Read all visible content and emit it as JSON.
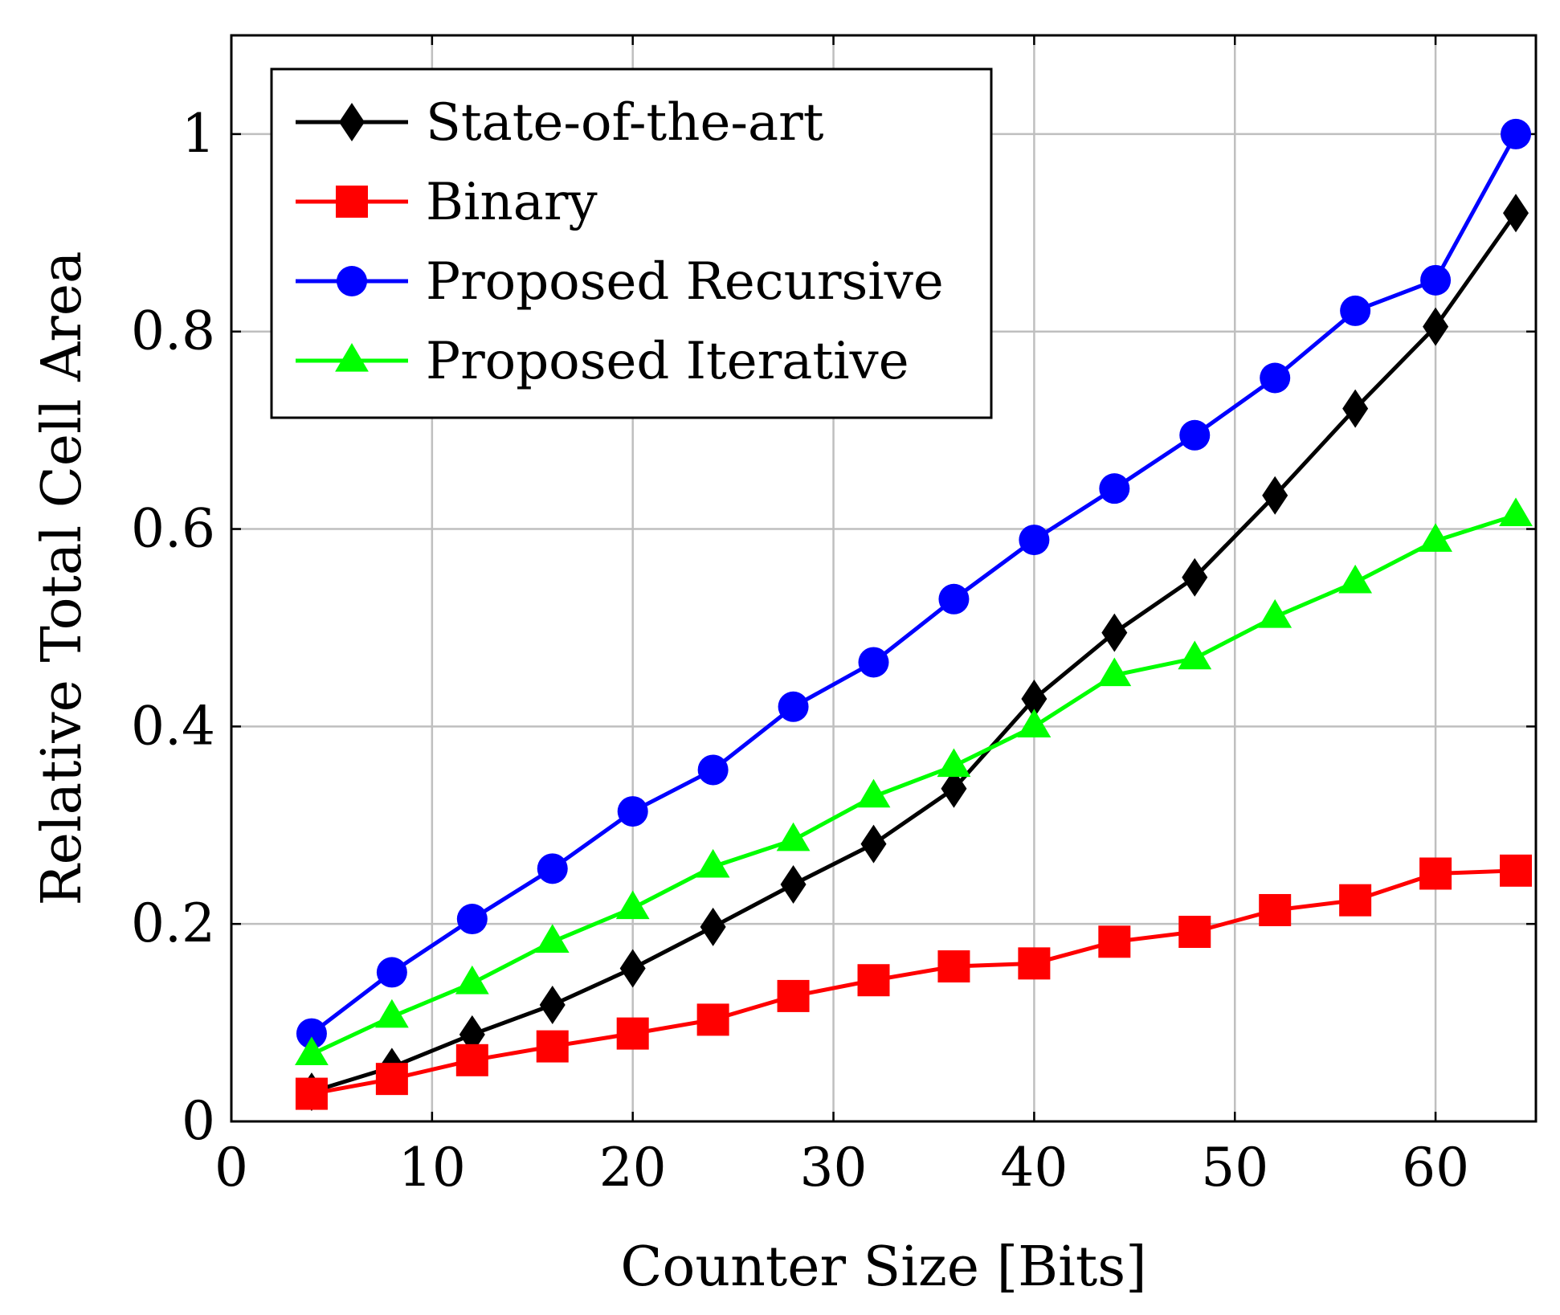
{
  "chart_data": {
    "type": "line",
    "title": "",
    "xlabel": "Counter Size [Bits]",
    "ylabel": "Relative Total Cell Area",
    "xlim": [
      0,
      65
    ],
    "ylim": [
      0,
      1.1
    ],
    "xticks": [
      0,
      10,
      20,
      30,
      40,
      50,
      60
    ],
    "xtick_labels": [
      "0",
      "10",
      "20",
      "30",
      "40",
      "50",
      "60"
    ],
    "yticks": [
      0,
      0.2,
      0.4,
      0.6,
      0.8,
      1
    ],
    "ytick_labels": [
      "0",
      "0.2",
      "0.4",
      "0.6",
      "0.8",
      "1"
    ],
    "grid": true,
    "legend_position": "top-left",
    "x": [
      4,
      8,
      12,
      16,
      20,
      24,
      28,
      32,
      36,
      40,
      44,
      48,
      52,
      56,
      60,
      64
    ],
    "series": [
      {
        "name": "State-of-the-art",
        "color": "#000000",
        "marker": "diamond",
        "values": [
          0.03,
          0.055,
          0.088,
          0.118,
          0.155,
          0.197,
          0.24,
          0.281,
          0.337,
          0.428,
          0.495,
          0.551,
          0.634,
          0.722,
          0.805,
          0.92
        ]
      },
      {
        "name": "Binary",
        "color": "#ff0000",
        "marker": "square",
        "values": [
          0.028,
          0.043,
          0.062,
          0.076,
          0.089,
          0.103,
          0.127,
          0.143,
          0.157,
          0.16,
          0.182,
          0.192,
          0.214,
          0.224,
          0.251,
          0.254
        ]
      },
      {
        "name": "Proposed Recursive",
        "color": "#0000ff",
        "marker": "circle",
        "values": [
          0.089,
          0.151,
          0.205,
          0.256,
          0.314,
          0.356,
          0.42,
          0.465,
          0.529,
          0.589,
          0.641,
          0.695,
          0.753,
          0.821,
          0.852,
          1.0
        ]
      },
      {
        "name": "Proposed Iterative",
        "color": "#00ff00",
        "marker": "triangle",
        "values": [
          0.068,
          0.106,
          0.14,
          0.182,
          0.216,
          0.258,
          0.285,
          0.329,
          0.36,
          0.4,
          0.452,
          0.469,
          0.511,
          0.546,
          0.588,
          0.614
        ]
      }
    ]
  }
}
